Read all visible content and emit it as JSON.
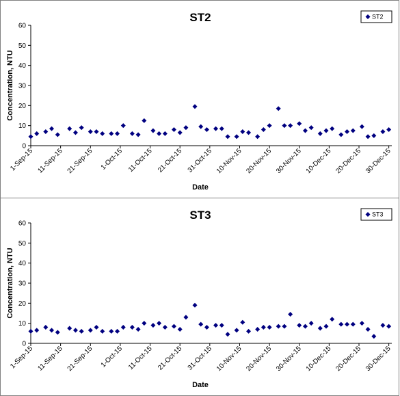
{
  "chart_data": [
    {
      "type": "scatter",
      "title": "ST2",
      "xlabel": "Date",
      "ylabel": "Concentration, NTU",
      "ylim": [
        0,
        60
      ],
      "yticks": [
        "0",
        "10",
        "20",
        "30",
        "40",
        "50",
        "60"
      ],
      "xlim": [
        "2015-09-01",
        "2015-12-31"
      ],
      "xticks": [
        "1-Sep-15",
        "11-Sep-15",
        "21-Sep-15",
        "1-Oct-15",
        "11-Oct-15",
        "21-Oct-15",
        "31-Oct-15",
        "10-Nov-15",
        "20-Nov-15",
        "30-Nov-15",
        "10-Dec-15",
        "20-Dec-15",
        "30-Dec-15"
      ],
      "grid": false,
      "legend": "top-right",
      "color": "#000080",
      "marker": "diamond",
      "series": [
        {
          "name": "ST2",
          "x": [
            "2015-09-01",
            "2015-09-03",
            "2015-09-06",
            "2015-09-08",
            "2015-09-10",
            "2015-09-14",
            "2015-09-16",
            "2015-09-18",
            "2015-09-21",
            "2015-09-23",
            "2015-09-25",
            "2015-09-28",
            "2015-09-30",
            "2015-10-02",
            "2015-10-05",
            "2015-10-07",
            "2015-10-09",
            "2015-10-12",
            "2015-10-14",
            "2015-10-16",
            "2015-10-19",
            "2015-10-21",
            "2015-10-23",
            "2015-10-26",
            "2015-10-28",
            "2015-10-30",
            "2015-11-02",
            "2015-11-04",
            "2015-11-06",
            "2015-11-09",
            "2015-11-11",
            "2015-11-13",
            "2015-11-16",
            "2015-11-18",
            "2015-11-20",
            "2015-11-23",
            "2015-11-25",
            "2015-11-27",
            "2015-11-30",
            "2015-12-02",
            "2015-12-04",
            "2015-12-07",
            "2015-12-09",
            "2015-12-11",
            "2015-12-14",
            "2015-12-16",
            "2015-12-18",
            "2015-12-21",
            "2015-12-23",
            "2015-12-25",
            "2015-12-28",
            "2015-12-30"
          ],
          "values": [
            4.5,
            6,
            7,
            8.5,
            5.5,
            8.5,
            6.5,
            9,
            7,
            7,
            6,
            6,
            6,
            10,
            6,
            5.5,
            12.5,
            7.5,
            6,
            6,
            8,
            6.5,
            9,
            19.5,
            9.5,
            8,
            8.5,
            8.5,
            4.5,
            4.5,
            7,
            6.5,
            4.5,
            8,
            10,
            18.5,
            10,
            10,
            11,
            7.5,
            9,
            6,
            7.5,
            8.5,
            5.5,
            7,
            7.5,
            9.5,
            4.5,
            5,
            7,
            8
          ]
        }
      ]
    },
    {
      "type": "scatter",
      "title": "ST3",
      "xlabel": "Date",
      "ylabel": "Concentration, NTU",
      "ylim": [
        0,
        60
      ],
      "yticks": [
        "0",
        "10",
        "20",
        "30",
        "40",
        "50",
        "60"
      ],
      "xlim": [
        "2015-09-01",
        "2015-12-31"
      ],
      "xticks": [
        "1-Sep-15",
        "11-Sep-15",
        "21-Sep-15",
        "1-Oct-15",
        "11-Oct-15",
        "21-Oct-15",
        "31-Oct-15",
        "10-Nov-15",
        "20-Nov-15",
        "30-Nov-15",
        "10-Dec-15",
        "20-Dec-15",
        "30-Dec-15"
      ],
      "grid": false,
      "legend": "top-right",
      "color": "#000080",
      "marker": "diamond",
      "series": [
        {
          "name": "ST3",
          "x": [
            "2015-09-01",
            "2015-09-03",
            "2015-09-06",
            "2015-09-08",
            "2015-09-10",
            "2015-09-14",
            "2015-09-16",
            "2015-09-18",
            "2015-09-21",
            "2015-09-23",
            "2015-09-25",
            "2015-09-28",
            "2015-09-30",
            "2015-10-02",
            "2015-10-05",
            "2015-10-07",
            "2015-10-09",
            "2015-10-12",
            "2015-10-14",
            "2015-10-16",
            "2015-10-19",
            "2015-10-21",
            "2015-10-23",
            "2015-10-26",
            "2015-10-28",
            "2015-10-30",
            "2015-11-02",
            "2015-11-04",
            "2015-11-06",
            "2015-11-09",
            "2015-11-11",
            "2015-11-13",
            "2015-11-16",
            "2015-11-18",
            "2015-11-20",
            "2015-11-23",
            "2015-11-25",
            "2015-11-27",
            "2015-11-30",
            "2015-12-02",
            "2015-12-04",
            "2015-12-07",
            "2015-12-09",
            "2015-12-11",
            "2015-12-14",
            "2015-12-16",
            "2015-12-18",
            "2015-12-21",
            "2015-12-23",
            "2015-12-25",
            "2015-12-28",
            "2015-12-30"
          ],
          "values": [
            6,
            6.5,
            8,
            6.5,
            5.5,
            7.5,
            6.5,
            6,
            6.5,
            8,
            6,
            6,
            6,
            8,
            8,
            7,
            10,
            9,
            10,
            8,
            8.5,
            7,
            13,
            19,
            9.5,
            8,
            9,
            9,
            4.5,
            6.5,
            10.5,
            6,
            7,
            8,
            8,
            8.5,
            8.5,
            14.5,
            9,
            8.5,
            10,
            7.5,
            8.5,
            12,
            9.5,
            9.5,
            9.5,
            10,
            7,
            3.5,
            9,
            8.5
          ]
        }
      ]
    }
  ]
}
